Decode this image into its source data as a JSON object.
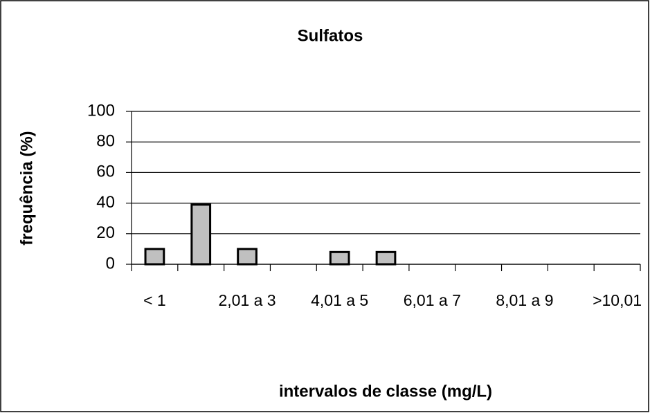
{
  "chart_data": {
    "type": "bar",
    "title": "Sulfatos",
    "x_label": "intervalos de classe (mg/L)",
    "y_label": "frequência (%)",
    "categories": [
      "< 1",
      null,
      "2,01 a 3",
      null,
      "4,01 a 5",
      null,
      "6,01 a 7",
      null,
      "8,01 a 9",
      null,
      ">10,01"
    ],
    "values": [
      10,
      39,
      10,
      0,
      8,
      8,
      0,
      0,
      0,
      0,
      0
    ],
    "color": "#c0c0c0",
    "ylim": [
      0,
      100
    ],
    "yticks": [
      0,
      20,
      40,
      60,
      80,
      100
    ],
    "grid": true
  }
}
